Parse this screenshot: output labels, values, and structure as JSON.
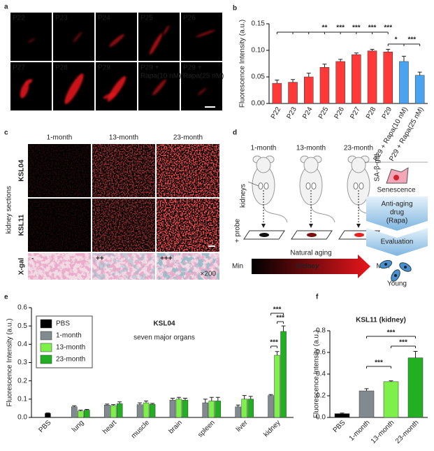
{
  "panel_labels": [
    "a",
    "b",
    "c",
    "d",
    "e",
    "f"
  ],
  "panel_a": {
    "labels": [
      "P22",
      "P23",
      "P24",
      "P25",
      "P26",
      "P27",
      "P28",
      "P29"
    ],
    "rapa_labels": [
      {
        "prefix": "P29 +",
        "drug": "Rapa(10 nM)"
      },
      {
        "prefix": "P29 +",
        "drug": "Rapa(25 nM)"
      }
    ]
  },
  "panel_c": {
    "columns": [
      "1-month",
      "13-month",
      "23-month"
    ],
    "rows": [
      "KSL04",
      "KSL11",
      "X-gal"
    ],
    "side_label": "kidney sections",
    "xgal_scores": [
      "-",
      "++",
      "+++"
    ],
    "magnification": "×200"
  },
  "panel_d": {
    "ages": [
      "1-month",
      "13-month",
      "23-month"
    ],
    "stain": "SA-β-gal",
    "organ": "kidneys",
    "probe": "+ probe",
    "aging": "Natural aging",
    "min": "Min",
    "max": "Max",
    "kidney": "Kidney",
    "senescence": "Senescence",
    "drug": [
      "Anti-aging",
      "drug",
      "(Rapa)"
    ],
    "evaluation": "Evaluation",
    "young": "Young"
  },
  "chart_data": [
    {
      "type": "bar",
      "ylabel": "Fluorescence Intensity (a.u.)",
      "categories": [
        "P22",
        "P23",
        "P24",
        "P25",
        "P26",
        "P27",
        "P28",
        "P29",
        "P29 + Rapa(10 nM)",
        "P29 + Rapa(25 nM)"
      ],
      "values": [
        0.038,
        0.04,
        0.05,
        0.068,
        0.079,
        0.092,
        0.099,
        0.097,
        0.079,
        0.053
      ],
      "errors": [
        0.006,
        0.005,
        0.007,
        0.006,
        0.004,
        0.003,
        0.003,
        0.005,
        0.01,
        0.006
      ],
      "colors": [
        "#ff3838",
        "#ff3838",
        "#ff3838",
        "#ff3838",
        "#ff3838",
        "#ff3838",
        "#ff3838",
        "#ff3838",
        "#4aa3f0",
        "#4aa3f0"
      ],
      "ylim": [
        0,
        0.15
      ],
      "yticks": [
        {
          "value": 0,
          "label": "0.00"
        },
        {
          "value": 0.05,
          "label": "0.05"
        },
        {
          "value": 0.1,
          "label": "0.10"
        },
        0.15
      ],
      "annotations": [
        "**",
        "***",
        "***",
        "***",
        "***",
        "*",
        "***"
      ]
    },
    {
      "type": "bar",
      "title": "KSL04",
      "subtitle": "seven major organs",
      "ylabel": "Fluorescence Intensity (a.u.)",
      "categories": [
        "PBS",
        "lung",
        "heart",
        "muscle",
        "brain",
        "spleen",
        "liver",
        "kidney"
      ],
      "series": [
        {
          "name": "PBS",
          "color": "#000000",
          "values": [
            0.022,
            null,
            null,
            null,
            null,
            null,
            null,
            null
          ],
          "errors": [
            0.003,
            null,
            null,
            null,
            null,
            null,
            null,
            null
          ]
        },
        {
          "name": "1-month",
          "color": "#808a8f",
          "values": [
            null,
            0.058,
            0.068,
            0.07,
            0.095,
            0.08,
            0.058,
            0.12
          ],
          "errors": [
            null,
            0.006,
            0.005,
            0.01,
            0.01,
            0.02,
            0.01,
            0.005
          ]
        },
        {
          "name": "13-month",
          "color": "#7df04a",
          "values": [
            null,
            0.035,
            0.065,
            0.08,
            0.1,
            0.09,
            0.1,
            0.34
          ],
          "errors": [
            null,
            0.005,
            0.005,
            0.01,
            0.01,
            0.02,
            0.02,
            0.02
          ]
        },
        {
          "name": "23-month",
          "color": "#22b022",
          "values": [
            null,
            0.04,
            0.075,
            0.072,
            0.095,
            0.09,
            0.1,
            0.47
          ],
          "errors": [
            null,
            0.004,
            0.01,
            0.005,
            0.01,
            0.02,
            0.015,
            0.03
          ]
        }
      ],
      "ylim": [
        0,
        0.6
      ],
      "yticks": [
        {
          "value": 0,
          "label": "0.0"
        },
        0.1,
        0.2,
        0.3,
        0.4,
        0.5,
        0.6
      ],
      "legend": "upper left",
      "annotations": [
        "***",
        "***",
        "***"
      ]
    },
    {
      "type": "bar",
      "title": "KSL11 (kidney)",
      "ylabel": "Fluorescence Intensity (a.u.)",
      "categories": [
        "PBS",
        "1-month",
        "13-month",
        "23-month"
      ],
      "values": [
        0.035,
        0.245,
        0.33,
        0.55
      ],
      "errors": [
        0.005,
        0.02,
        0.008,
        0.06
      ],
      "colors": [
        "#000000",
        "#808a8f",
        "#7df04a",
        "#22b022"
      ],
      "ylim": [
        0,
        0.8
      ],
      "yticks": [
        {
          "value": 0,
          "label": "0.0"
        },
        0.2,
        0.4,
        0.6,
        0.8
      ],
      "annotations": [
        "***",
        "***",
        "***"
      ]
    }
  ]
}
